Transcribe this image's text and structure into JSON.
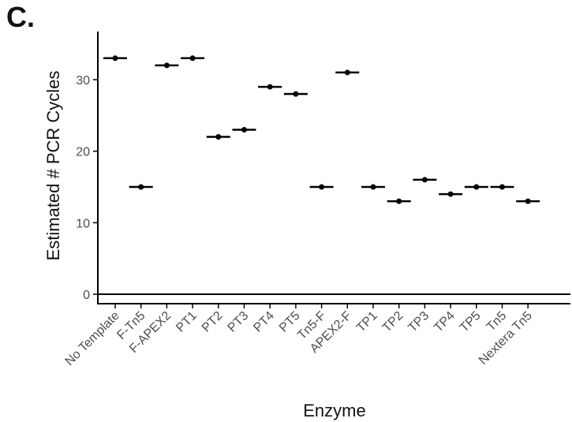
{
  "panel_label": "C.",
  "chart_data": {
    "type": "scatter",
    "xlabel": "Enzyme",
    "ylabel": "Estimated # PCR Cycles",
    "ylim": [
      0,
      36
    ],
    "yticks": [
      0,
      10,
      20,
      30
    ],
    "grid": false,
    "categories": [
      "No Template",
      "F-Tn5",
      "F-APEX2",
      "PT1",
      "PT2",
      "PT3",
      "PT4",
      "PT5",
      "Tn5-F",
      "APEX2-F",
      "TP1",
      "TP2",
      "TP3",
      "TP4",
      "TP5",
      "Tn5",
      "Nextera Tn5"
    ],
    "values": [
      33,
      15,
      32,
      33,
      22,
      23,
      29,
      28,
      15,
      31,
      15,
      13,
      16,
      14,
      15,
      15,
      13
    ],
    "colors": {
      "marker": "#000000",
      "axis": "#000000",
      "tick_text": "#4d4d4d"
    }
  }
}
